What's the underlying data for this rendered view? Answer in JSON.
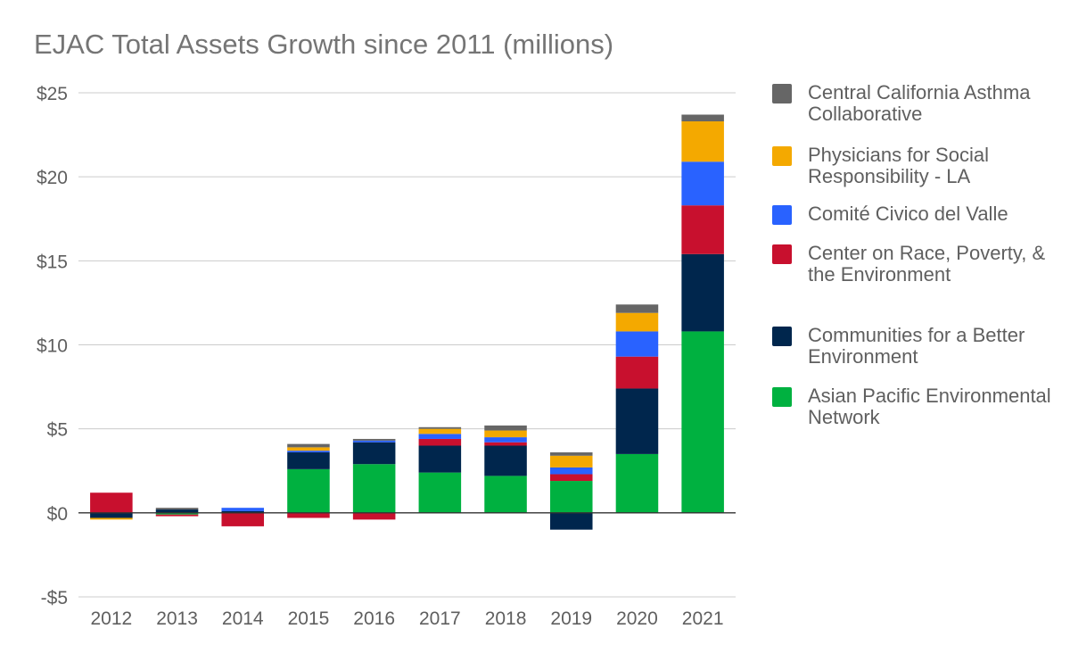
{
  "chart_data": {
    "type": "stacked-bar",
    "title": "EJAC Total Assets Growth since 2011 (millions)",
    "xlabel": "",
    "ylabel": "",
    "ylim": [
      -5,
      25
    ],
    "yticks": [
      -5,
      0,
      5,
      10,
      15,
      20,
      25
    ],
    "ytick_labels": [
      "-$5",
      "$0",
      "$5",
      "$10",
      "$15",
      "$20",
      "$25"
    ],
    "categories": [
      "2012",
      "2013",
      "2014",
      "2015",
      "2016",
      "2017",
      "2018",
      "2019",
      "2020",
      "2021"
    ],
    "legend_position": "right",
    "series": [
      {
        "name": "Asian Pacific Environmental Network",
        "color": "#00b140",
        "values": [
          0,
          -0.1,
          0,
          2.6,
          2.9,
          2.4,
          2.2,
          1.9,
          3.5,
          10.8
        ]
      },
      {
        "name": "Communities for a Better Environment",
        "color": "#00264d",
        "values": [
          -0.3,
          0.2,
          0.1,
          1.0,
          1.3,
          1.6,
          1.8,
          -1.0,
          3.9,
          4.6
        ]
      },
      {
        "name": "Center on Race, Poverty, & the Environment",
        "color": "#c8102e",
        "values": [
          1.2,
          -0.1,
          -0.8,
          -0.3,
          -0.4,
          0.4,
          0.2,
          0.4,
          1.9,
          2.9
        ]
      },
      {
        "name": "Comité Civico del Valle",
        "color": "#2962ff",
        "values": [
          0,
          0,
          0.2,
          0.1,
          0.1,
          0.3,
          0.3,
          0.4,
          1.5,
          2.6
        ]
      },
      {
        "name": "Physicians for Social Responsibility - LA",
        "color": "#f4a900",
        "values": [
          -0.1,
          0,
          0,
          0.2,
          0,
          0.3,
          0.4,
          0.7,
          1.1,
          2.4
        ]
      },
      {
        "name": "Central California Asthma Collaborative",
        "color": "#666666",
        "values": [
          0,
          0.1,
          0,
          0.2,
          0.1,
          0.1,
          0.3,
          0.2,
          0.5,
          0.4
        ]
      }
    ]
  },
  "legend_order": [
    5,
    4,
    3,
    2,
    1,
    0
  ]
}
